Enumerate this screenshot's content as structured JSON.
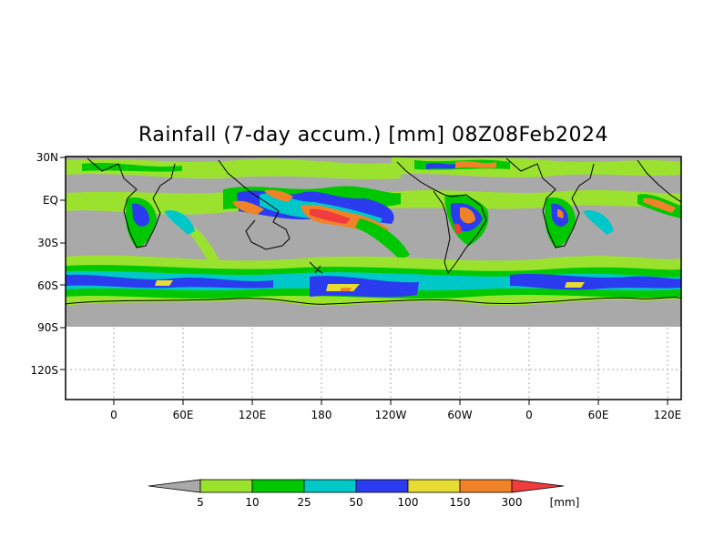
{
  "title": "Rainfall (7-day accum.) [mm] 08Z08Feb2024",
  "map": {
    "lat_labels": [
      "30N",
      "EQ",
      "30S",
      "60S",
      "90S",
      "120S"
    ],
    "lon_labels": [
      "0",
      "60E",
      "120E",
      "180",
      "120W",
      "60W",
      "0",
      "60E",
      "120E"
    ],
    "colors": {
      "no_rain": "#a9a9a9",
      "ocean_blank": "#ffffff",
      "coast": "#000000",
      "grid": "#aaaaaa"
    }
  },
  "colorbar": {
    "ticks": [
      "5",
      "10",
      "25",
      "50",
      "100",
      "150",
      "300"
    ],
    "unit": "[mm]",
    "colors": [
      "#a9a9a9",
      "#9be22f",
      "#00c800",
      "#00c8c8",
      "#2b3cf0",
      "#e6dc32",
      "#f08228",
      "#f03c3c"
    ]
  }
}
